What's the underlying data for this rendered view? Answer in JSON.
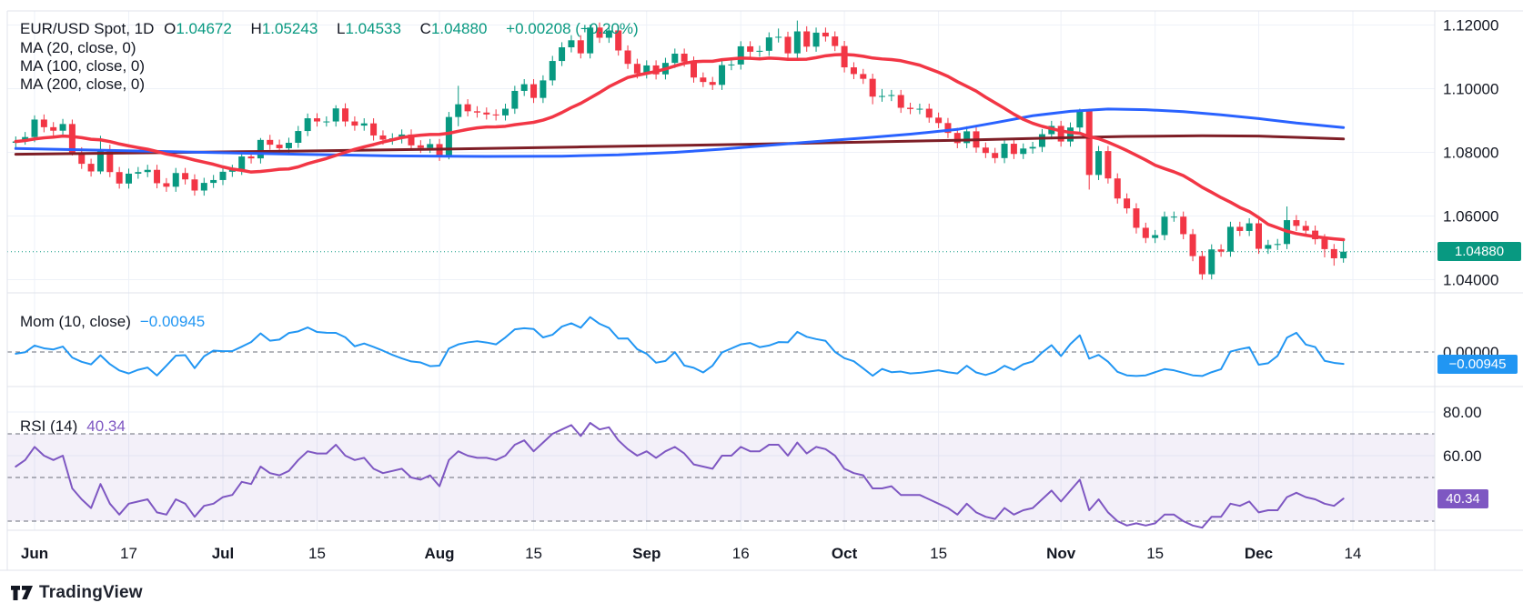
{
  "legend": {
    "title": "EUR/USD Spot, 1D",
    "fields": [
      {
        "k": "O",
        "v": "1.04672"
      },
      {
        "k": "H",
        "v": "1.05243"
      },
      {
        "k": "L",
        "v": "1.04533"
      },
      {
        "k": "C",
        "v": "1.04880"
      }
    ],
    "change": "+0.00208 (+0.20%)",
    "ma20_row": "MA (20, close, 0)",
    "ma100_row": "MA (100, close, 0)",
    "ma200_row": "MA (200, close, 0)"
  },
  "momentum_pane": {
    "label": "Mom (10, close)",
    "value": "−0.00945",
    "axis_zero": "0.00000",
    "badge": "−0.00945"
  },
  "rsi_pane": {
    "label": "RSI (14)",
    "value": "40.34",
    "badge": "40.34"
  },
  "price_axis": {
    "ticks": [
      {
        "label": "1.12000",
        "value": 1.12
      },
      {
        "label": "1.10000",
        "value": 1.1
      },
      {
        "label": "1.08000",
        "value": 1.08
      },
      {
        "label": "1.06000",
        "value": 1.06
      },
      {
        "label": "1.04000",
        "value": 1.04
      }
    ],
    "close_badge": "1.04880",
    "close_value": 1.0488
  },
  "rsi_axis": [
    {
      "label": "80.00",
      "value": 80
    },
    {
      "label": "60.00",
      "value": 60
    }
  ],
  "time_axis": [
    {
      "text": "Jun",
      "bold": true,
      "i": 2
    },
    {
      "text": "17",
      "bold": false,
      "i": 12
    },
    {
      "text": "Jul",
      "bold": true,
      "i": 22
    },
    {
      "text": "15",
      "bold": false,
      "i": 32
    },
    {
      "text": "Aug",
      "bold": true,
      "i": 45
    },
    {
      "text": "15",
      "bold": false,
      "i": 55
    },
    {
      "text": "Sep",
      "bold": true,
      "i": 67
    },
    {
      "text": "16",
      "bold": false,
      "i": 77
    },
    {
      "text": "Oct",
      "bold": true,
      "i": 88
    },
    {
      "text": "15",
      "bold": false,
      "i": 98
    },
    {
      "text": "Nov",
      "bold": true,
      "i": 111
    },
    {
      "text": "15",
      "bold": false,
      "i": 121
    },
    {
      "text": "Dec",
      "bold": true,
      "i": 132
    },
    {
      "text": "14",
      "bold": false,
      "i": 142
    }
  ],
  "logo": {
    "text": "TradingView"
  },
  "colors": {
    "up": "#089981",
    "down": "#F23645",
    "ma20": "#F23645",
    "ma100": "#2962FF",
    "ma200": "#7E1E26",
    "mom": "#2196F3",
    "rsi": "#7E57C2",
    "rsi_band": "rgba(126,87,194,0.09)",
    "grid": "#EEF1F8",
    "border": "#E0E3EB",
    "dashed": "#6A6D78",
    "text": "#131722",
    "close_line": "#089981"
  },
  "chart_data": {
    "type": "candlestick+indicators",
    "symbol": "EUR/USD Spot",
    "timeframe": "1D",
    "ohlc_last": {
      "open": 1.04672,
      "high": 1.05243,
      "low": 1.04533,
      "close": 1.0488,
      "change": 0.00208,
      "change_pct": 0.2
    },
    "history_closes": [
      1.078,
      1.079,
      1.08,
      1.081,
      1.082,
      1.0825,
      1.083,
      1.0835,
      1.084,
      1.0845,
      1.0848,
      1.085,
      1.0852,
      1.085,
      1.0848,
      1.0846,
      1.0844,
      1.0842,
      1.0838,
      1.0834
    ],
    "candles": [
      [
        1.083,
        1.085,
        1.0814,
        1.0834
      ],
      [
        1.0834,
        1.0864,
        1.0824,
        1.0848
      ],
      [
        1.0848,
        1.0916,
        1.0832,
        1.0903
      ],
      [
        1.0903,
        1.0919,
        1.0863,
        1.0879
      ],
      [
        1.0879,
        1.0895,
        1.0852,
        1.0868
      ],
      [
        1.0868,
        1.0905,
        1.0852,
        1.0889
      ],
      [
        1.0889,
        1.0903,
        1.079,
        1.08
      ],
      [
        1.08,
        1.0816,
        1.0748,
        1.0764
      ],
      [
        1.0764,
        1.078,
        1.0724,
        1.074
      ],
      [
        1.074,
        1.0852,
        1.0732,
        1.0808
      ],
      [
        1.0808,
        1.0824,
        1.0722,
        1.0738
      ],
      [
        1.0738,
        1.0754,
        1.0686,
        1.0702
      ],
      [
        1.0702,
        1.0749,
        1.0686,
        1.0733
      ],
      [
        1.0733,
        1.0754,
        1.0717,
        1.0738
      ],
      [
        1.0738,
        1.0761,
        1.0722,
        1.0745
      ],
      [
        1.0745,
        1.0761,
        1.0687,
        1.0703
      ],
      [
        1.0703,
        1.0719,
        1.0676,
        1.0692
      ],
      [
        1.0692,
        1.0751,
        1.0676,
        1.0735
      ],
      [
        1.0735,
        1.0751,
        1.0699,
        1.0715
      ],
      [
        1.0715,
        1.0731,
        1.0664,
        1.068
      ],
      [
        1.068,
        1.072,
        1.0664,
        1.0704
      ],
      [
        1.0704,
        1.0729,
        1.0688,
        1.0713
      ],
      [
        1.0713,
        1.0755,
        1.0697,
        1.0739
      ],
      [
        1.0739,
        1.0761,
        1.0723,
        1.0745
      ],
      [
        1.0745,
        1.0803,
        1.0729,
        1.0787
      ],
      [
        1.0787,
        1.0803,
        1.0765,
        1.0781
      ],
      [
        1.0781,
        1.0845,
        1.0765,
        1.0839
      ],
      [
        1.0839,
        1.0855,
        1.0808,
        1.0824
      ],
      [
        1.0824,
        1.084,
        1.0797,
        1.0813
      ],
      [
        1.0813,
        1.0846,
        1.0797,
        1.083
      ],
      [
        1.083,
        1.0883,
        1.0814,
        1.0867
      ],
      [
        1.0867,
        1.0922,
        1.0851,
        1.0907
      ],
      [
        1.0907,
        1.0923,
        1.0881,
        1.0897
      ],
      [
        1.0897,
        1.0913,
        1.0881,
        1.0897
      ],
      [
        1.0897,
        1.0948,
        1.0881,
        1.0938
      ],
      [
        1.0938,
        1.0954,
        1.0881,
        1.0897
      ],
      [
        1.0897,
        1.0913,
        1.0868,
        1.0884
      ],
      [
        1.0884,
        1.0907,
        1.0868,
        1.0891
      ],
      [
        1.0891,
        1.0907,
        1.0837,
        1.0853
      ],
      [
        1.0853,
        1.0869,
        1.0824,
        1.084
      ],
      [
        1.084,
        1.086,
        1.0824,
        1.0844
      ],
      [
        1.0844,
        1.0872,
        1.0828,
        1.0856
      ],
      [
        1.0856,
        1.0872,
        1.0806,
        1.0822
      ],
      [
        1.0822,
        1.0838,
        1.0798,
        1.0814
      ],
      [
        1.0814,
        1.0842,
        1.0798,
        1.0826
      ],
      [
        1.0826,
        1.0842,
        1.0773,
        1.0789
      ],
      [
        1.0789,
        1.0927,
        1.0778,
        1.0911
      ],
      [
        1.0911,
        1.1009,
        1.0882,
        1.0951
      ],
      [
        1.0951,
        1.0967,
        1.0913,
        1.0929
      ],
      [
        1.0929,
        1.0945,
        1.0909,
        1.0925
      ],
      [
        1.0925,
        1.0941,
        1.0903,
        1.0919
      ],
      [
        1.0919,
        1.0935,
        1.09,
        1.0916
      ],
      [
        1.0916,
        1.0953,
        1.09,
        1.0937
      ],
      [
        1.0937,
        1.1009,
        1.0921,
        1.0993
      ],
      [
        1.0993,
        1.103,
        1.0977,
        1.1014
      ],
      [
        1.1014,
        1.103,
        1.0955,
        1.0971
      ],
      [
        1.0971,
        1.1042,
        1.0955,
        1.1026
      ],
      [
        1.1026,
        1.1103,
        1.101,
        1.1087
      ],
      [
        1.1087,
        1.1146,
        1.1071,
        1.113
      ],
      [
        1.113,
        1.1168,
        1.1114,
        1.1152
      ],
      [
        1.1152,
        1.1168,
        1.1095,
        1.1111
      ],
      [
        1.1111,
        1.1201,
        1.1095,
        1.1192
      ],
      [
        1.1192,
        1.1208,
        1.1144,
        1.116
      ],
      [
        1.116,
        1.1199,
        1.1144,
        1.1183
      ],
      [
        1.1183,
        1.1199,
        1.1104,
        1.112
      ],
      [
        1.112,
        1.1136,
        1.1062,
        1.1078
      ],
      [
        1.1078,
        1.1094,
        1.1032,
        1.1048
      ],
      [
        1.1048,
        1.1089,
        1.1032,
        1.1073
      ],
      [
        1.1073,
        1.1089,
        1.1029,
        1.1045
      ],
      [
        1.1045,
        1.1097,
        1.1029,
        1.1081
      ],
      [
        1.1081,
        1.1126,
        1.1065,
        1.111
      ],
      [
        1.111,
        1.1126,
        1.1069,
        1.1085
      ],
      [
        1.1085,
        1.1101,
        1.1019,
        1.1035
      ],
      [
        1.1035,
        1.1051,
        1.1005,
        1.1021
      ],
      [
        1.1021,
        1.1037,
        1.0996,
        1.1012
      ],
      [
        1.1012,
        1.109,
        1.0996,
        1.1074
      ],
      [
        1.1074,
        1.1092,
        1.1058,
        1.1076
      ],
      [
        1.1076,
        1.1149,
        1.106,
        1.1133
      ],
      [
        1.1133,
        1.1149,
        1.11,
        1.1116
      ],
      [
        1.1116,
        1.1135,
        1.11,
        1.1119
      ],
      [
        1.1119,
        1.1177,
        1.1103,
        1.1161
      ],
      [
        1.1161,
        1.1189,
        1.1145,
        1.1163
      ],
      [
        1.1163,
        1.1179,
        1.1095,
        1.1111
      ],
      [
        1.1111,
        1.1214,
        1.1095,
        1.118
      ],
      [
        1.118,
        1.1196,
        1.1116,
        1.1132
      ],
      [
        1.1132,
        1.1192,
        1.1116,
        1.1176
      ],
      [
        1.1176,
        1.1192,
        1.1148,
        1.1164
      ],
      [
        1.1164,
        1.118,
        1.1118,
        1.1134
      ],
      [
        1.1134,
        1.115,
        1.1051,
        1.1067
      ],
      [
        1.1067,
        1.1083,
        1.103,
        1.1046
      ],
      [
        1.1046,
        1.1062,
        1.1015,
        1.1031
      ],
      [
        1.1031,
        1.1047,
        1.0951,
        1.0975
      ],
      [
        1.0975,
        1.0999,
        1.0959,
        1.0977
      ],
      [
        1.0977,
        1.0996,
        1.0961,
        1.098
      ],
      [
        1.098,
        1.0996,
        1.0924,
        1.094
      ],
      [
        1.094,
        1.0956,
        1.092,
        1.0936
      ],
      [
        1.0936,
        1.0953,
        1.092,
        1.0937
      ],
      [
        1.0937,
        1.0953,
        1.0893,
        1.0909
      ],
      [
        1.0909,
        1.0925,
        1.0876,
        1.0892
      ],
      [
        1.0892,
        1.0908,
        1.0845,
        1.0861
      ],
      [
        1.0861,
        1.0877,
        1.0813,
        1.0829
      ],
      [
        1.0829,
        1.0882,
        1.0813,
        1.0866
      ],
      [
        1.0866,
        1.0882,
        1.0799,
        1.0815
      ],
      [
        1.0815,
        1.0831,
        1.0782,
        1.0798
      ],
      [
        1.0798,
        1.0814,
        1.0766,
        1.0782
      ],
      [
        1.0782,
        1.0843,
        1.0766,
        1.0827
      ],
      [
        1.0827,
        1.0843,
        1.0779,
        1.0795
      ],
      [
        1.0795,
        1.0828,
        1.0779,
        1.0812
      ],
      [
        1.0812,
        1.0833,
        1.0796,
        1.0817
      ],
      [
        1.0817,
        1.0873,
        1.0801,
        1.0857
      ],
      [
        1.0857,
        1.0899,
        1.0841,
        1.0883
      ],
      [
        1.0883,
        1.0899,
        1.0818,
        1.0834
      ],
      [
        1.0834,
        1.0894,
        1.0818,
        1.0878
      ],
      [
        1.0878,
        1.0937,
        1.0862,
        1.093
      ],
      [
        1.093,
        1.0937,
        1.0683,
        1.0729
      ],
      [
        1.0729,
        1.082,
        1.0713,
        1.0804
      ],
      [
        1.0804,
        1.082,
        1.0702,
        1.0718
      ],
      [
        1.0718,
        1.0734,
        1.0639,
        1.0655
      ],
      [
        1.0655,
        1.0671,
        1.0608,
        1.0624
      ],
      [
        1.0624,
        1.064,
        1.0545,
        1.0563
      ],
      [
        1.0563,
        1.0579,
        1.0515,
        1.0531
      ],
      [
        1.0531,
        1.0556,
        1.0515,
        1.054
      ],
      [
        1.054,
        1.0614,
        1.0524,
        1.0598
      ],
      [
        1.0598,
        1.0614,
        1.0582,
        1.0598
      ],
      [
        1.0598,
        1.0614,
        1.0527,
        1.0543
      ],
      [
        1.0543,
        1.0559,
        1.0458,
        1.0474
      ],
      [
        1.0474,
        1.049,
        1.04,
        1.0417
      ],
      [
        1.0417,
        1.0511,
        1.0401,
        1.0495
      ],
      [
        1.0495,
        1.0511,
        1.0472,
        1.0488
      ],
      [
        1.0488,
        1.0582,
        1.0472,
        1.0566
      ],
      [
        1.0566,
        1.0582,
        1.0537,
        1.0553
      ],
      [
        1.0553,
        1.0593,
        1.0537,
        1.0577
      ],
      [
        1.0577,
        1.0593,
        1.0481,
        1.0497
      ],
      [
        1.0497,
        1.0525,
        1.0481,
        1.0509
      ],
      [
        1.0509,
        1.0528,
        1.0493,
        1.0512
      ],
      [
        1.0512,
        1.063,
        1.0496,
        1.0587
      ],
      [
        1.0587,
        1.0603,
        1.0553,
        1.0569
      ],
      [
        1.0569,
        1.0585,
        1.0538,
        1.0554
      ],
      [
        1.0554,
        1.057,
        1.0511,
        1.0527
      ],
      [
        1.0527,
        1.0543,
        1.047,
        1.0496
      ],
      [
        1.0496,
        1.0512,
        1.0444,
        1.04672
      ],
      [
        1.04672,
        1.05243,
        1.04533,
        1.0488
      ]
    ],
    "ma20_window": 20,
    "ma100": [
      [
        0,
        1.0812
      ],
      [
        10,
        1.0806
      ],
      [
        20,
        1.08
      ],
      [
        30,
        1.0794
      ],
      [
        40,
        1.0789
      ],
      [
        50,
        1.0787
      ],
      [
        58,
        1.0788
      ],
      [
        64,
        1.0792
      ],
      [
        70,
        1.08
      ],
      [
        75,
        1.081
      ],
      [
        80,
        1.0822
      ],
      [
        85,
        1.0834
      ],
      [
        90,
        1.0845
      ],
      [
        95,
        1.0857
      ],
      [
        100,
        1.0872
      ],
      [
        104,
        1.0893
      ],
      [
        108,
        1.0915
      ],
      [
        112,
        1.0929
      ],
      [
        116,
        1.0936
      ],
      [
        120,
        1.0934
      ],
      [
        124,
        1.0928
      ],
      [
        128,
        1.0918
      ],
      [
        132,
        1.0906
      ],
      [
        136,
        1.0892
      ],
      [
        141,
        1.0878
      ]
    ],
    "ma200": [
      [
        0,
        1.0794
      ],
      [
        15,
        1.0799
      ],
      [
        30,
        1.0804
      ],
      [
        45,
        1.081
      ],
      [
        60,
        1.0817
      ],
      [
        75,
        1.0824
      ],
      [
        90,
        1.0832
      ],
      [
        100,
        1.0838
      ],
      [
        110,
        1.0845
      ],
      [
        118,
        1.085
      ],
      [
        126,
        1.0852
      ],
      [
        132,
        1.0851
      ],
      [
        136,
        1.0847
      ],
      [
        141,
        1.0842
      ]
    ],
    "momentum": [
      -0.0014,
      -0.0002,
      0.0051,
      0.0029,
      0.002,
      0.0043,
      -0.0044,
      -0.0078,
      -0.0098,
      -0.0026,
      -0.0096,
      -0.0146,
      -0.017,
      -0.0141,
      -0.0123,
      -0.0186,
      -0.0108,
      -0.0029,
      -0.0025,
      -0.0128,
      -0.0034,
      0.0011,
      0.0006,
      0.0007,
      0.0042,
      0.0078,
      0.0147,
      0.0089,
      0.0098,
      0.015,
      0.0163,
      0.0194,
      0.0158,
      0.0152,
      0.0151,
      0.0116,
      0.0045,
      0.0067,
      0.004,
      0.001,
      -0.0023,
      -0.0051,
      -0.0075,
      -0.0083,
      -0.0112,
      -0.0108,
      0.0027,
      0.006,
      0.0076,
      0.0085,
      0.0075,
      0.006,
      0.0115,
      0.0179,
      0.0188,
      0.0182,
      0.0115,
      0.0136,
      0.0201,
      0.0227,
      0.0192,
      0.0276,
      0.0223,
      0.019,
      0.0106,
      0.0107,
      0.0022,
      -0.0014,
      -0.0085,
      -0.0071,
      -0.0001,
      -0.0107,
      -0.0125,
      -0.0162,
      -0.0108,
      -0.0004,
      0.0028,
      0.006,
      0.0071,
      0.0038,
      0.0051,
      0.0078,
      0.0076,
      0.0159,
      0.012,
      0.0102,
      0.0088,
      0.0001,
      -0.0049,
      -0.0073,
      -0.013,
      -0.0188,
      -0.0134,
      -0.016,
      -0.0155,
      -0.017,
      -0.0165,
      -0.0155,
      -0.0145,
      -0.016,
      -0.017,
      -0.0109,
      -0.0162,
      -0.0182,
      -0.0158,
      -0.0109,
      -0.0142,
      -0.0097,
      -0.0075,
      -0.0004,
      0.0054,
      -0.0032,
      0.0063,
      0.0132,
      -0.0053,
      -0.0023,
      -0.0077,
      -0.0157,
      -0.0185,
      -0.019,
      -0.0185,
      -0.016,
      -0.0135,
      -0.0145,
      -0.0165,
      -0.0185,
      -0.019,
      -0.016,
      -0.0136,
      0.0003,
      0.0022,
      0.0037,
      -0.0101,
      -0.0089,
      -0.0031,
      0.0113,
      0.0152,
      0.0059,
      0.0039,
      -0.007,
      -0.0086,
      -0.00945
    ],
    "rsi": [
      55,
      58,
      64,
      60,
      58,
      60,
      45,
      40,
      36,
      47,
      38,
      33,
      38,
      39,
      40,
      34,
      33,
      40,
      38,
      32,
      37,
      38,
      41,
      42,
      48,
      47,
      55,
      52,
      51,
      53,
      58,
      62,
      61,
      61,
      65,
      60,
      58,
      59,
      54,
      52,
      53,
      54,
      50,
      49,
      51,
      46,
      58,
      62,
      60,
      59,
      59,
      58,
      60,
      65,
      67,
      62,
      66,
      70,
      72,
      74,
      69,
      75,
      72,
      73,
      67,
      63,
      60,
      62,
      59,
      62,
      64,
      61,
      56,
      55,
      54,
      60,
      60,
      64,
      62,
      62,
      65,
      65,
      60,
      66,
      61,
      64,
      63,
      60,
      54,
      52,
      51,
      45,
      45,
      46,
      42,
      42,
      42,
      40,
      38,
      36,
      33,
      38,
      34,
      32,
      31,
      36,
      33,
      35,
      36,
      40,
      44,
      39,
      44,
      49,
      35,
      40,
      34,
      30,
      28,
      29,
      28,
      29,
      33,
      33,
      30,
      28,
      27,
      32,
      32,
      38,
      37,
      39,
      34,
      35,
      35,
      41,
      43,
      41,
      40,
      38,
      37,
      40.34
    ],
    "rsi_bands": [
      70,
      50,
      30
    ]
  }
}
